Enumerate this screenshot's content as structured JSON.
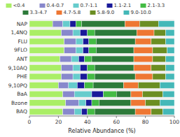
{
  "chart_data": {
    "type": "bar",
    "orientation": "horizontal",
    "stacked": true,
    "categories": [
      "NAP",
      "1,4NQ",
      "FLU",
      "9FLO",
      "ANT",
      "9,10AQ",
      "PHE",
      "9,10PQ",
      "BaA",
      "Bzone",
      "BAQ"
    ],
    "series": [
      {
        "name": "<0.4",
        "color": "#aaee66",
        "values": [
          16,
          22,
          24,
          24,
          21,
          22,
          22,
          20,
          23,
          25,
          23
        ]
      },
      {
        "name": "0.4-0.7",
        "color": "#8888cc",
        "values": [
          7,
          8,
          8,
          8,
          8,
          8,
          8,
          7,
          8,
          9,
          8
        ]
      },
      {
        "name": "0.7-1.1",
        "color": "#66cccc",
        "values": [
          5,
          5,
          5,
          5,
          5,
          5,
          5,
          6,
          12,
          5,
          5
        ]
      },
      {
        "name": "1.1-2.1",
        "color": "#1a1a99",
        "values": [
          4,
          5,
          4,
          4,
          4,
          5,
          5,
          5,
          8,
          4,
          4
        ]
      },
      {
        "name": "2.1-3.3",
        "color": "#44bb44",
        "values": [
          4,
          5,
          5,
          5,
          5,
          5,
          5,
          6,
          9,
          5,
          5
        ]
      },
      {
        "name": "3.3-4.7",
        "color": "#2d7a3a",
        "values": [
          30,
          29,
          27,
          26,
          29,
          27,
          28,
          21,
          10,
          22,
          28
        ]
      },
      {
        "name": "4.7-5.8",
        "color": "#ee7733",
        "values": [
          10,
          12,
          11,
          13,
          13,
          12,
          12,
          10,
          8,
          10,
          11
        ]
      },
      {
        "name": "5.8-9.0",
        "color": "#6b8e23",
        "values": [
          13,
          8,
          10,
          10,
          9,
          10,
          9,
          15,
          14,
          10,
          8
        ]
      },
      {
        "name": "9.0-10.0",
        "color": "#44b8b8",
        "values": [
          11,
          6,
          6,
          5,
          6,
          6,
          6,
          10,
          8,
          10,
          8
        ]
      }
    ],
    "xlabel": "Relative Abundance (%)",
    "xlim": [
      0,
      100
    ],
    "xticks": [
      0,
      20,
      40,
      60,
      80,
      100
    ],
    "legend": "top",
    "grid": false
  }
}
